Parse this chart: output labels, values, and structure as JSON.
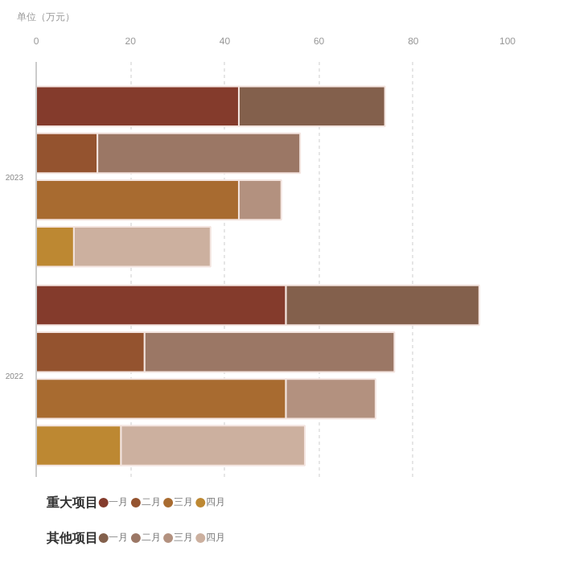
{
  "chart_data": {
    "type": "bar",
    "orientation": "horizontal",
    "stacked": true,
    "xlabel": "单位（万元）",
    "categories": [
      null,
      null,
      null,
      null,
      null,
      null,
      null,
      null,
      null
    ],
    "xlim": [
      0,
      100
    ],
    "xticks": [
      0,
      20,
      40,
      60,
      80,
      100
    ],
    "grid": "x",
    "legend": "bottom",
    "annotations": [
      "2023",
      "2022",
      "一月",
      "二月",
      "三月",
      "四月"
    ],
    "series": [
      {
        "name": "重大项目",
        "colors": [
          "#843b2c",
          "#94532f",
          "#a86b30",
          "#bd8832",
          null,
          "#843b2c",
          "#94532f",
          "#a86b30",
          "#bd8832"
        ],
        "values": [
          43,
          13,
          43,
          8,
          null,
          53,
          23,
          53,
          18
        ]
      },
      {
        "name": "其他项目",
        "colors": [
          "#83604c",
          "#9b7765",
          "#b3917f",
          "#ccb09f",
          null,
          "#83604c",
          "#9b7765",
          "#b3917f",
          "#ccb09f"
        ],
        "values": [
          31,
          43,
          9,
          29,
          null,
          41,
          53,
          19,
          39
        ]
      }
    ]
  }
}
